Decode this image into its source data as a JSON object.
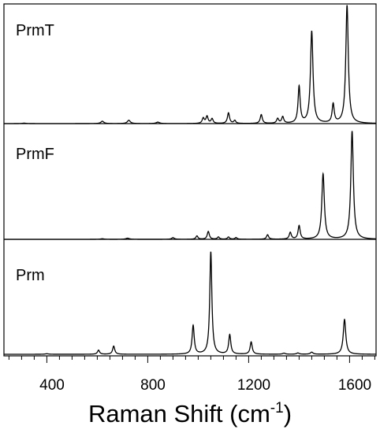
{
  "chart_data": {
    "type": "line",
    "title": "",
    "xlabel": "Raman Shift (cm",
    "xlabel_sup": "-1",
    "xlabel_close": ")",
    "ylabel": "",
    "xlim": [
      230,
      1705
    ],
    "x_ticks": [
      400,
      800,
      1200,
      1600
    ],
    "x_tick_labels": [
      "400",
      "800",
      "1200",
      "1600"
    ],
    "x_minor_step": 50,
    "grid": false,
    "line_color": "#000000",
    "panels": [
      {
        "name": "PrmT",
        "peaks": [
          {
            "x": 310,
            "h": 0.004,
            "w": 8
          },
          {
            "x": 620,
            "h": 0.02,
            "w": 7
          },
          {
            "x": 725,
            "h": 0.028,
            "w": 7
          },
          {
            "x": 840,
            "h": 0.012,
            "w": 8
          },
          {
            "x": 1020,
            "h": 0.045,
            "w": 5
          },
          {
            "x": 1035,
            "h": 0.06,
            "w": 5
          },
          {
            "x": 1055,
            "h": 0.04,
            "w": 5
          },
          {
            "x": 1120,
            "h": 0.09,
            "w": 5
          },
          {
            "x": 1145,
            "h": 0.025,
            "w": 5
          },
          {
            "x": 1250,
            "h": 0.075,
            "w": 5
          },
          {
            "x": 1315,
            "h": 0.04,
            "w": 5
          },
          {
            "x": 1335,
            "h": 0.055,
            "w": 5
          },
          {
            "x": 1400,
            "h": 0.31,
            "w": 5
          },
          {
            "x": 1450,
            "h": 0.78,
            "w": 6
          },
          {
            "x": 1535,
            "h": 0.16,
            "w": 5
          },
          {
            "x": 1590,
            "h": 1.0,
            "w": 6
          }
        ]
      },
      {
        "name": "PrmF",
        "peaks": [
          {
            "x": 620,
            "h": 0.005,
            "w": 8
          },
          {
            "x": 720,
            "h": 0.01,
            "w": 8
          },
          {
            "x": 900,
            "h": 0.015,
            "w": 6
          },
          {
            "x": 995,
            "h": 0.03,
            "w": 5
          },
          {
            "x": 1040,
            "h": 0.07,
            "w": 5
          },
          {
            "x": 1080,
            "h": 0.02,
            "w": 5
          },
          {
            "x": 1120,
            "h": 0.02,
            "w": 5
          },
          {
            "x": 1150,
            "h": 0.015,
            "w": 5
          },
          {
            "x": 1275,
            "h": 0.04,
            "w": 5
          },
          {
            "x": 1365,
            "h": 0.06,
            "w": 5
          },
          {
            "x": 1400,
            "h": 0.12,
            "w": 5
          },
          {
            "x": 1495,
            "h": 0.58,
            "w": 6
          },
          {
            "x": 1610,
            "h": 0.96,
            "w": 6
          }
        ]
      },
      {
        "name": "Prm",
        "peaks": [
          {
            "x": 400,
            "h": 0.005,
            "w": 8
          },
          {
            "x": 605,
            "h": 0.04,
            "w": 5
          },
          {
            "x": 665,
            "h": 0.08,
            "w": 5
          },
          {
            "x": 980,
            "h": 0.28,
            "w": 5
          },
          {
            "x": 1050,
            "h": 1.0,
            "w": 5
          },
          {
            "x": 1125,
            "h": 0.19,
            "w": 5
          },
          {
            "x": 1210,
            "h": 0.12,
            "w": 5
          },
          {
            "x": 1340,
            "h": 0.01,
            "w": 6
          },
          {
            "x": 1395,
            "h": 0.012,
            "w": 6
          },
          {
            "x": 1450,
            "h": 0.02,
            "w": 6
          },
          {
            "x": 1580,
            "h": 0.34,
            "w": 6
          }
        ]
      }
    ]
  }
}
